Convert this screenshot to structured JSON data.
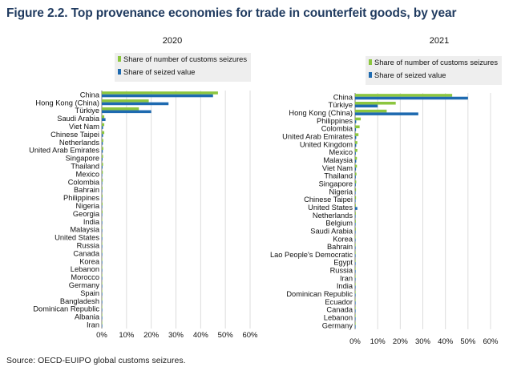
{
  "figure": {
    "title": "Figure 2.2. Top provenance economies for trade in counterfeit goods, by year",
    "source": "Source: OECD-EUIPO global customs seizures."
  },
  "colors": {
    "seizures": "#8cc63f",
    "value": "#1e6ab0",
    "grid": "#dcdcdc",
    "legend_bg": "#eeeeee"
  },
  "chart_data": [
    {
      "type": "bar",
      "orientation": "horizontal",
      "title": "2020",
      "xlim": [
        0,
        60
      ],
      "xticks": [
        "0%",
        "10%",
        "20%",
        "30%",
        "40%",
        "50%",
        "60%"
      ],
      "legend": [
        "Share of number of customs seizures",
        "Share of seized value"
      ],
      "legend_position": "top",
      "grid": true,
      "categories": [
        "China",
        "Hong Kong (China)",
        "Türkiye",
        "Saudi Arabia",
        "Viet Nam",
        "Chinese Taipei",
        "Netherlands",
        "United Arab Emirates",
        "Singapore",
        "Thailand",
        "Mexico",
        "Colombia",
        "Bahrain",
        "Philippines",
        "Nigeria",
        "Georgia",
        "India",
        "Malaysia",
        "United States",
        "Russia",
        "Canada",
        "Korea",
        "Lebanon",
        "Morocco",
        "Germany",
        "Spain",
        "Bangladesh",
        "Dominican Republic",
        "Albania",
        "Iran"
      ],
      "series": [
        {
          "name": "Share of number of customs seizures",
          "values": [
            47,
            19,
            15,
            1,
            1,
            1,
            0.6,
            0.6,
            0.5,
            0.5,
            0.4,
            0.4,
            0.3,
            0.3,
            0.3,
            0.3,
            0.2,
            0.2,
            0.2,
            0.2,
            0.2,
            0.2,
            0.1,
            0.1,
            0.1,
            0.1,
            0.1,
            0.1,
            0.1,
            0.1
          ]
        },
        {
          "name": "Share of seized value",
          "values": [
            45,
            27,
            20,
            1.5,
            0.5,
            0.5,
            0.4,
            0.4,
            0.3,
            0.3,
            0.2,
            0.2,
            0.1,
            0.1,
            0.1,
            0.1,
            0.1,
            0.1,
            0.2,
            0.1,
            0.1,
            0.1,
            0.1,
            0.1,
            0.1,
            0.1,
            0.1,
            0.1,
            0.1,
            0.1
          ]
        }
      ]
    },
    {
      "type": "bar",
      "orientation": "horizontal",
      "title": "2021",
      "xlim": [
        0,
        60
      ],
      "xticks": [
        "0%",
        "10%",
        "20%",
        "30%",
        "40%",
        "50%",
        "60%"
      ],
      "legend": [
        "Share of number of customs seizures",
        "Share of seized value"
      ],
      "legend_position": "top",
      "grid": true,
      "categories": [
        "China",
        "Türkiye",
        "Hong Kong (China)",
        "Philippines",
        "Colombia",
        "United Arab Emirates",
        "United Kingdom",
        "Mexico",
        "Malaysia",
        "Viet Nam",
        "Thailand",
        "Singapore",
        "Nigeria",
        "Chinese Taipei",
        "United States",
        "Netherlands",
        "Belgium",
        "Saudi Arabia",
        "Korea",
        "Bahrain",
        "Lao People's Democratic",
        "Egypt",
        "Russia",
        "Iran",
        "India",
        "Dominican Republic",
        "Ecuador",
        "Canada",
        "Lebanon",
        "Germany"
      ],
      "series": [
        {
          "name": "Share of number of customs seizures",
          "values": [
            43,
            18,
            14,
            2.5,
            2,
            1.5,
            1,
            1,
            0.8,
            0.8,
            0.6,
            0.5,
            0.4,
            0.4,
            0.3,
            0.3,
            0.3,
            0.3,
            0.2,
            0.2,
            0.2,
            0.2,
            0.2,
            0.2,
            0.1,
            0.1,
            0.1,
            0.1,
            0.1,
            0.1
          ]
        },
        {
          "name": "Share of seized value",
          "values": [
            50,
            10,
            28,
            0.5,
            0.4,
            0.5,
            0.5,
            0.3,
            0.5,
            0.4,
            0.3,
            0.3,
            0.2,
            0.2,
            1,
            0.2,
            0.1,
            0.1,
            0.1,
            0.1,
            0.1,
            0.1,
            0.1,
            0.1,
            0.1,
            0.1,
            0.1,
            0.1,
            0.1,
            0.1
          ]
        }
      ]
    }
  ]
}
